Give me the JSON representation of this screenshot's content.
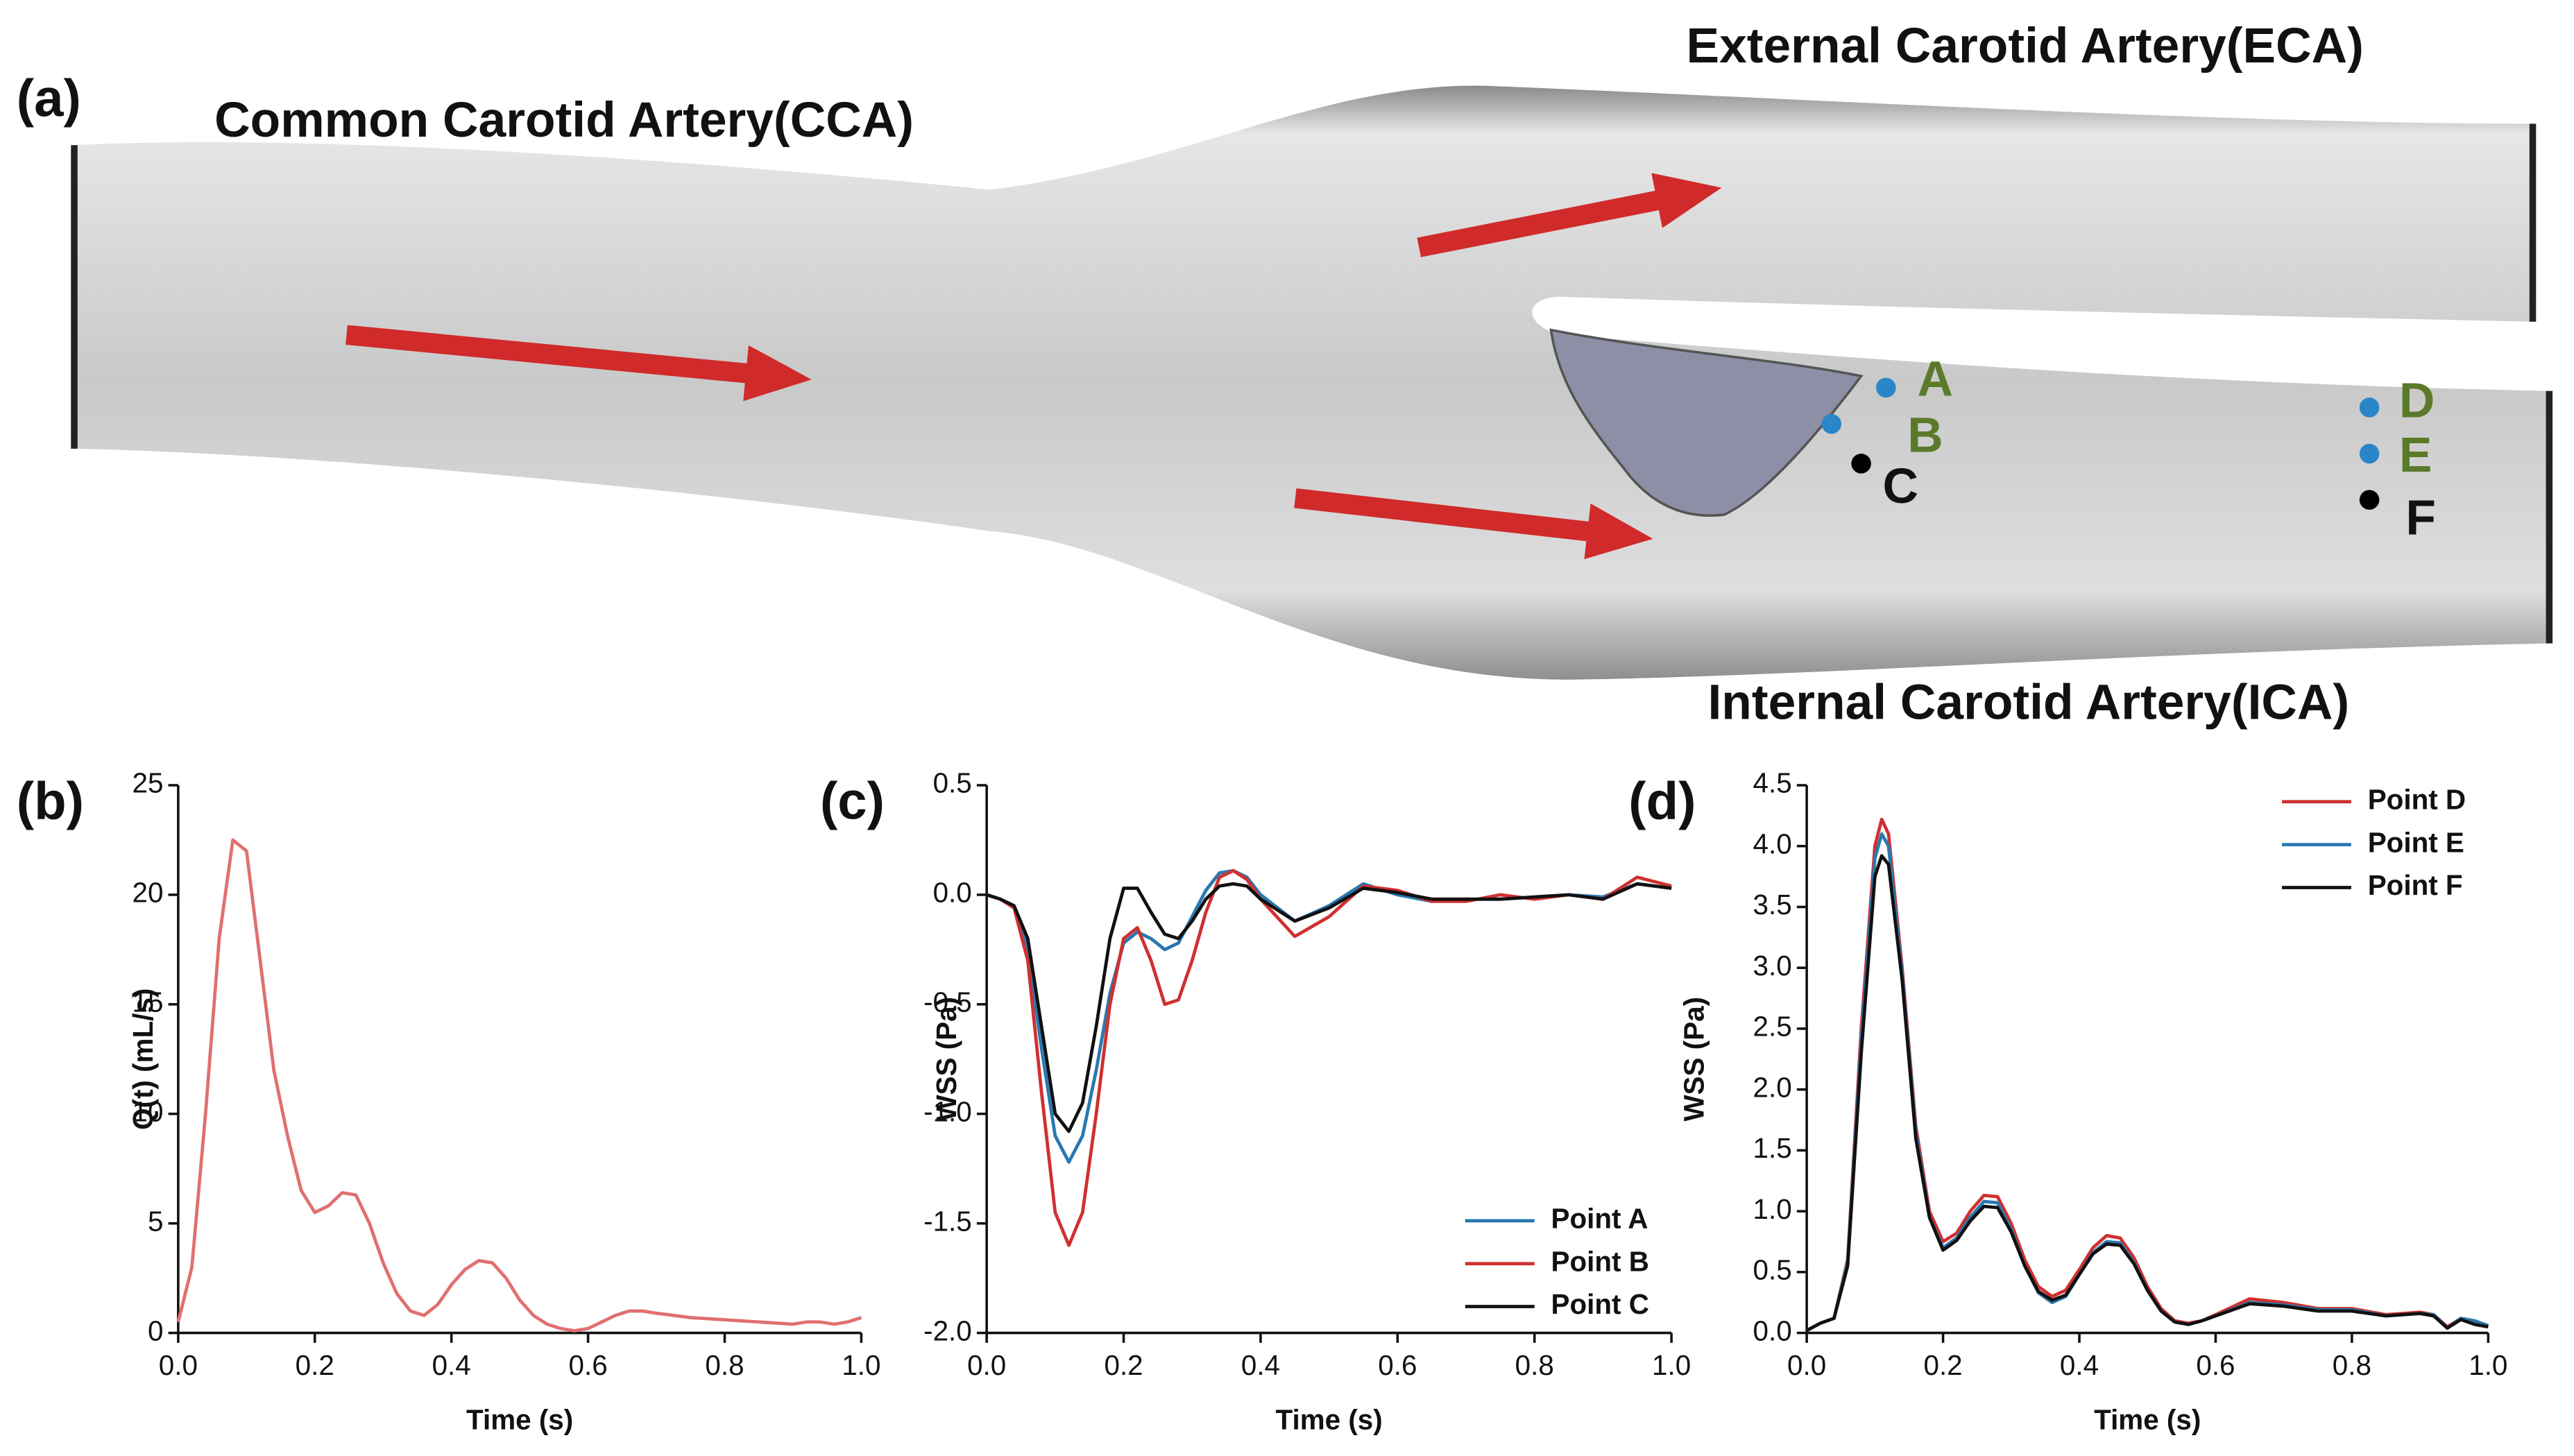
{
  "figure": {
    "panel_label": "(a)",
    "labels": {
      "cca": "Common Carotid Artery(CCA)",
      "eca": "External Carotid Artery(ECA)",
      "ica": "Internal Carotid Artery(ICA)"
    },
    "points": [
      "A",
      "B",
      "C",
      "D",
      "E",
      "F"
    ]
  },
  "chart_data": [
    {
      "type": "line",
      "panel_label": "(b)",
      "x_label": "Time (s)",
      "y_label": "Q(t) (mL/s)",
      "x": [
        0,
        0.02,
        0.04,
        0.06,
        0.08,
        0.1,
        0.12,
        0.14,
        0.16,
        0.18,
        0.2,
        0.22,
        0.24,
        0.26,
        0.28,
        0.3,
        0.32,
        0.34,
        0.36,
        0.38,
        0.4,
        0.42,
        0.44,
        0.46,
        0.48,
        0.5,
        0.52,
        0.54,
        0.56,
        0.58,
        0.6,
        0.62,
        0.64,
        0.66,
        0.68,
        0.7,
        0.75,
        0.8,
        0.85,
        0.9,
        0.92,
        0.94,
        0.96,
        0.98,
        1.0
      ],
      "values": [
        0.5,
        3,
        10,
        18,
        22.5,
        22,
        17,
        12,
        9,
        6.5,
        5.5,
        5.8,
        6.4,
        6.3,
        5,
        3.2,
        1.8,
        1,
        0.8,
        1.3,
        2.2,
        2.9,
        3.3,
        3.2,
        2.5,
        1.5,
        0.8,
        0.4,
        0.2,
        0.1,
        0.2,
        0.5,
        0.8,
        1,
        1,
        0.9,
        0.7,
        0.6,
        0.5,
        0.4,
        0.5,
        0.5,
        0.4,
        0.5,
        0.7
      ],
      "color": "#e07070",
      "xlim": [
        0,
        1
      ],
      "xticks": [
        {
          "value": 0,
          "label": "0.0"
        },
        0.2,
        0.4,
        0.6,
        0.8,
        {
          "value": 1,
          "label": "1.0"
        }
      ],
      "ylim": [
        0,
        25
      ],
      "yticks": [
        0,
        5,
        10,
        15,
        20,
        25
      ]
    },
    {
      "type": "line",
      "panel_label": "(c)",
      "x_label": "Time (s)",
      "y_label": "WSS (Pa)",
      "legend": "lower right",
      "x": [
        0,
        0.02,
        0.04,
        0.06,
        0.08,
        0.1,
        0.12,
        0.14,
        0.16,
        0.18,
        0.2,
        0.22,
        0.24,
        0.26,
        0.28,
        0.3,
        0.32,
        0.34,
        0.36,
        0.38,
        0.4,
        0.45,
        0.5,
        0.55,
        0.6,
        0.65,
        0.7,
        0.75,
        0.8,
        0.85,
        0.9,
        0.95,
        1.0
      ],
      "series": [
        {
          "name": "Point A",
          "color": "#2a78b0",
          "values": [
            0,
            -0.02,
            -0.05,
            -0.25,
            -0.7,
            -1.1,
            -1.22,
            -1.1,
            -0.8,
            -0.45,
            -0.22,
            -0.17,
            -0.2,
            -0.25,
            -0.22,
            -0.1,
            0.02,
            0.1,
            0.11,
            0.08,
            0,
            -0.12,
            -0.05,
            0.05,
            0,
            -0.03,
            -0.02,
            -0.02,
            -0.01,
            0,
            -0.01,
            0.05,
            0.03
          ]
        },
        {
          "name": "Point B",
          "color": "#d03030",
          "values": [
            0,
            -0.02,
            -0.06,
            -0.3,
            -0.9,
            -1.45,
            -1.6,
            -1.45,
            -1,
            -0.5,
            -0.2,
            -0.15,
            -0.3,
            -0.5,
            -0.48,
            -0.3,
            -0.08,
            0.08,
            0.11,
            0.07,
            -0.02,
            -0.19,
            -0.1,
            0.04,
            0.02,
            -0.03,
            -0.03,
            0,
            -0.02,
            0,
            -0.02,
            0.08,
            0.04
          ]
        },
        {
          "name": "Point C",
          "color": "#111111",
          "values": [
            0,
            -0.02,
            -0.05,
            -0.2,
            -0.6,
            -1,
            -1.08,
            -0.95,
            -0.6,
            -0.2,
            0.03,
            0.03,
            -0.08,
            -0.18,
            -0.2,
            -0.12,
            -0.02,
            0.04,
            0.05,
            0.04,
            -0.02,
            -0.12,
            -0.06,
            0.03,
            0.01,
            -0.02,
            -0.02,
            -0.02,
            -0.01,
            0,
            -0.02,
            0.05,
            0.03
          ]
        }
      ],
      "xlim": [
        0,
        1
      ],
      "xticks": [
        {
          "value": 0,
          "label": "0.0"
        },
        0.2,
        0.4,
        0.6,
        0.8,
        {
          "value": 1,
          "label": "1.0"
        }
      ],
      "ylim": [
        -2,
        0.5
      ],
      "yticks": [
        {
          "value": -2,
          "label": "-2.0"
        },
        -1.5,
        {
          "value": -1,
          "label": "-1.0"
        },
        -0.5,
        {
          "value": 0,
          "label": "0.0"
        },
        0.5
      ]
    },
    {
      "type": "line",
      "panel_label": "(d)",
      "x_label": "Time (s)",
      "y_label": "WSS (Pa)",
      "legend": "upper right",
      "x": [
        0,
        0.02,
        0.04,
        0.06,
        0.08,
        0.1,
        0.11,
        0.12,
        0.14,
        0.16,
        0.18,
        0.2,
        0.22,
        0.24,
        0.26,
        0.28,
        0.3,
        0.32,
        0.34,
        0.36,
        0.38,
        0.4,
        0.42,
        0.44,
        0.46,
        0.48,
        0.5,
        0.52,
        0.54,
        0.56,
        0.58,
        0.6,
        0.65,
        0.7,
        0.75,
        0.8,
        0.85,
        0.9,
        0.92,
        0.94,
        0.96,
        0.98,
        1.0
      ],
      "series": [
        {
          "name": "Point D",
          "color": "#d03030",
          "values": [
            0.02,
            0.08,
            0.12,
            0.6,
            2.5,
            4.0,
            4.22,
            4.1,
            3.0,
            1.7,
            1.0,
            0.75,
            0.82,
            1.0,
            1.13,
            1.12,
            0.9,
            0.6,
            0.38,
            0.3,
            0.35,
            0.52,
            0.7,
            0.8,
            0.78,
            0.62,
            0.38,
            0.2,
            0.1,
            0.08,
            0.1,
            0.15,
            0.28,
            0.25,
            0.2,
            0.2,
            0.15,
            0.17,
            0.15,
            0.05,
            0.12,
            0.08,
            0.05
          ]
        },
        {
          "name": "Point E",
          "color": "#2a78b0",
          "values": [
            0.02,
            0.08,
            0.12,
            0.58,
            2.4,
            3.9,
            4.1,
            4.0,
            2.95,
            1.65,
            0.95,
            0.7,
            0.78,
            0.95,
            1.08,
            1.07,
            0.85,
            0.55,
            0.33,
            0.25,
            0.3,
            0.48,
            0.66,
            0.75,
            0.74,
            0.58,
            0.35,
            0.18,
            0.09,
            0.07,
            0.1,
            0.14,
            0.25,
            0.23,
            0.19,
            0.19,
            0.14,
            0.16,
            0.15,
            0.04,
            0.12,
            0.1,
            0.06
          ]
        },
        {
          "name": "Point F",
          "color": "#111111",
          "values": [
            0.02,
            0.08,
            0.12,
            0.55,
            2.3,
            3.75,
            3.92,
            3.85,
            2.9,
            1.6,
            0.95,
            0.68,
            0.76,
            0.92,
            1.04,
            1.03,
            0.83,
            0.55,
            0.34,
            0.27,
            0.31,
            0.48,
            0.65,
            0.73,
            0.72,
            0.57,
            0.35,
            0.18,
            0.09,
            0.07,
            0.1,
            0.14,
            0.24,
            0.22,
            0.18,
            0.18,
            0.14,
            0.16,
            0.14,
            0.04,
            0.11,
            0.07,
            0.05
          ]
        }
      ],
      "xlim": [
        0,
        1
      ],
      "xticks": [
        {
          "value": 0,
          "label": "0.0"
        },
        0.2,
        0.4,
        0.6,
        0.8,
        {
          "value": 1,
          "label": "1.0"
        }
      ],
      "ylim": [
        0,
        4.5
      ],
      "yticks": [
        {
          "value": 0,
          "label": "0.0"
        },
        0.5,
        {
          "value": 1,
          "label": "1.0"
        },
        1.5,
        {
          "value": 2,
          "label": "2.0"
        },
        2.5,
        {
          "value": 3,
          "label": "3.0"
        },
        3.5,
        {
          "value": 4,
          "label": "4.0"
        },
        4.5
      ]
    }
  ]
}
